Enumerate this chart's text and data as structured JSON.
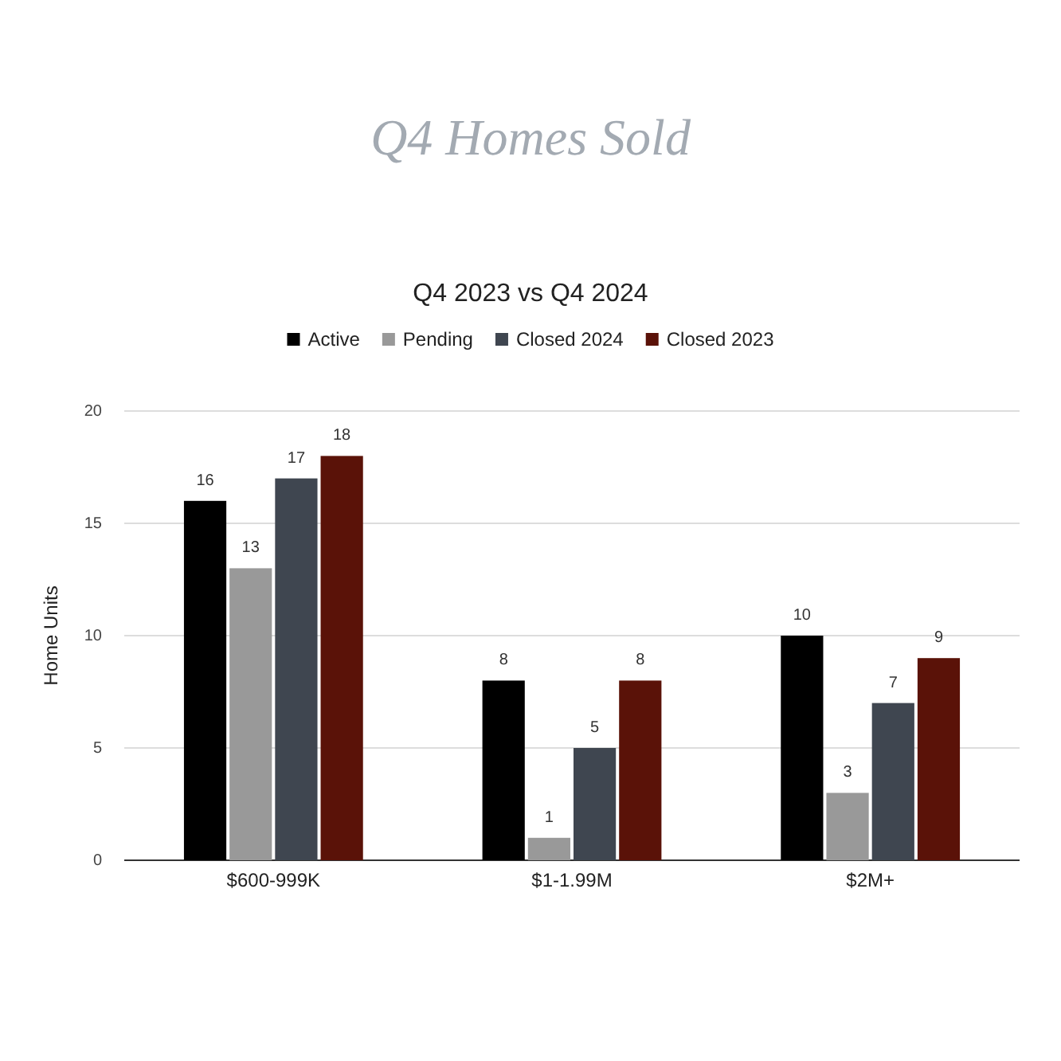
{
  "chart_data": {
    "type": "bar",
    "title": "Q4 Homes Sold",
    "subtitle": "Q4 2023 vs Q4 2024",
    "ylabel": "Home Units",
    "categories": [
      "$600-999K",
      "$1-1.99M",
      "$2M+"
    ],
    "series": [
      {
        "name": "Active",
        "color": "#000000",
        "values": [
          16,
          8,
          10
        ]
      },
      {
        "name": "Pending",
        "color": "#999999",
        "values": [
          13,
          1,
          3
        ]
      },
      {
        "name": "Closed 2024",
        "color": "#3f4650",
        "values": [
          17,
          5,
          7
        ]
      },
      {
        "name": "Closed 2023",
        "color": "#5a1208",
        "values": [
          18,
          8,
          9
        ]
      }
    ],
    "ylim": [
      0,
      20
    ],
    "yticks": [
      0,
      5,
      10,
      15,
      20
    ],
    "grid": "y",
    "legend": "top",
    "data_labels": true
  }
}
